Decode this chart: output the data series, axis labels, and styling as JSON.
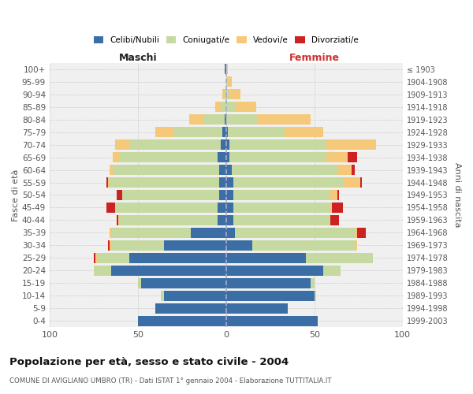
{
  "age_groups": [
    "0-4",
    "5-9",
    "10-14",
    "15-19",
    "20-24",
    "25-29",
    "30-34",
    "35-39",
    "40-44",
    "45-49",
    "50-54",
    "55-59",
    "60-64",
    "65-69",
    "70-74",
    "75-79",
    "80-84",
    "85-89",
    "90-94",
    "95-99",
    "100+"
  ],
  "birth_years": [
    "1999-2003",
    "1994-1998",
    "1989-1993",
    "1984-1988",
    "1979-1983",
    "1974-1978",
    "1969-1973",
    "1964-1968",
    "1959-1963",
    "1954-1958",
    "1949-1953",
    "1944-1948",
    "1939-1943",
    "1934-1938",
    "1929-1933",
    "1924-1928",
    "1919-1923",
    "1914-1918",
    "1909-1913",
    "1904-1908",
    "≤ 1903"
  ],
  "males_celibi": [
    50,
    40,
    35,
    48,
    65,
    55,
    35,
    20,
    5,
    5,
    4,
    4,
    4,
    5,
    3,
    2,
    1,
    0,
    0,
    0,
    1
  ],
  "males_coniugati": [
    0,
    0,
    2,
    2,
    10,
    18,
    30,
    45,
    55,
    58,
    55,
    62,
    60,
    55,
    52,
    28,
    12,
    3,
    1,
    0,
    0
  ],
  "males_vedovi": [
    0,
    0,
    0,
    0,
    0,
    1,
    1,
    1,
    1,
    0,
    0,
    1,
    2,
    4,
    8,
    10,
    8,
    3,
    1,
    0,
    0
  ],
  "males_divorziati": [
    0,
    0,
    0,
    0,
    0,
    1,
    1,
    0,
    1,
    5,
    3,
    1,
    0,
    0,
    0,
    0,
    0,
    0,
    0,
    0,
    0
  ],
  "females_nubili": [
    52,
    35,
    50,
    48,
    55,
    45,
    15,
    5,
    4,
    4,
    4,
    4,
    3,
    2,
    2,
    1,
    0,
    0,
    0,
    0,
    0
  ],
  "females_coniugate": [
    0,
    0,
    1,
    2,
    10,
    38,
    58,
    68,
    55,
    55,
    55,
    62,
    60,
    55,
    55,
    32,
    18,
    5,
    2,
    1,
    0
  ],
  "females_vedove": [
    0,
    0,
    0,
    0,
    0,
    0,
    1,
    1,
    0,
    1,
    4,
    10,
    8,
    12,
    28,
    22,
    30,
    12,
    6,
    2,
    1
  ],
  "females_divorziate": [
    0,
    0,
    0,
    0,
    0,
    0,
    0,
    5,
    5,
    6,
    1,
    1,
    2,
    5,
    0,
    0,
    0,
    0,
    0,
    0,
    0
  ],
  "colors_celibi": "#3a6ea5",
  "colors_coniugati": "#c5d9a0",
  "colors_vedovi": "#f5c87a",
  "colors_divorziati": "#cc2222",
  "bg_color": "#f0f0f0",
  "grid_color": "#cccccc",
  "title": "Popolazione per età, sesso e stato civile - 2004",
  "subtitle": "COMUNE DI AVIGLIANO UMBRO (TR) - Dati ISTAT 1° gennaio 2004 - Elaborazione TUTTITALIA.IT",
  "label_maschi": "Maschi",
  "label_femmine": "Femmine",
  "label_fascia": "Fasce di età",
  "label_anni": "Anni di nascita",
  "xlim": 100,
  "legend_labels": [
    "Celibi/Nubili",
    "Coniugati/e",
    "Vedovi/e",
    "Divorziati/e"
  ]
}
